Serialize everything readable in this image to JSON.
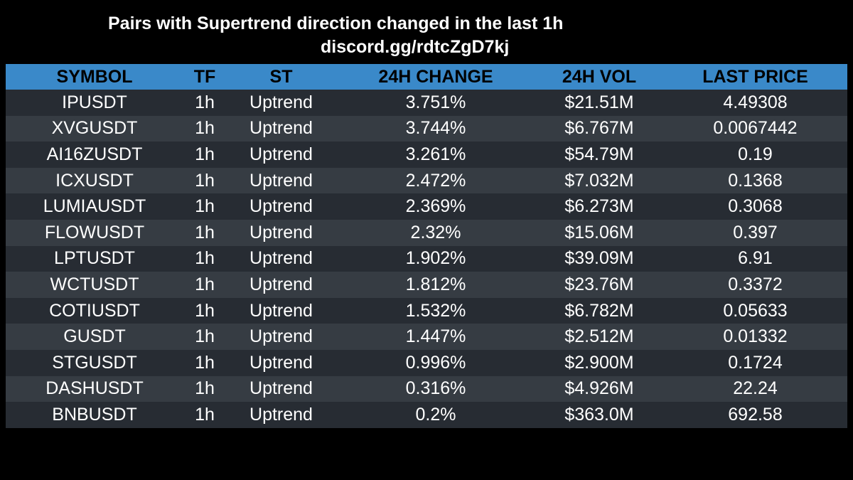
{
  "header": {
    "title": "Pairs with Supertrend direction changed in the last 1h",
    "subtitle": "discord.gg/rdtcZgD7kj"
  },
  "colors": {
    "background": "#000000",
    "header_row": "#3a89c9",
    "row_dark": "#272c33",
    "row_light": "#363c43",
    "text": "#ffffff"
  },
  "table": {
    "columns": [
      "SYMBOL",
      "TF",
      "ST",
      "24H CHANGE",
      "24H VOL",
      "LAST PRICE"
    ],
    "rows": [
      [
        "IPUSDT",
        "1h",
        "Uptrend",
        "3.751%",
        "$21.51M",
        "4.49308"
      ],
      [
        "XVGUSDT",
        "1h",
        "Uptrend",
        "3.744%",
        "$6.767M",
        "0.0067442"
      ],
      [
        "AI16ZUSDT",
        "1h",
        "Uptrend",
        "3.261%",
        "$54.79M",
        "0.19"
      ],
      [
        "ICXUSDT",
        "1h",
        "Uptrend",
        "2.472%",
        "$7.032M",
        "0.1368"
      ],
      [
        "LUMIAUSDT",
        "1h",
        "Uptrend",
        "2.369%",
        "$6.273M",
        "0.3068"
      ],
      [
        "FLOWUSDT",
        "1h",
        "Uptrend",
        "2.32%",
        "$15.06M",
        "0.397"
      ],
      [
        "LPTUSDT",
        "1h",
        "Uptrend",
        "1.902%",
        "$39.09M",
        "6.91"
      ],
      [
        "WCTUSDT",
        "1h",
        "Uptrend",
        "1.812%",
        "$23.76M",
        "0.3372"
      ],
      [
        "COTIUSDT",
        "1h",
        "Uptrend",
        "1.532%",
        "$6.782M",
        "0.05633"
      ],
      [
        "GUSDT",
        "1h",
        "Uptrend",
        "1.447%",
        "$2.512M",
        "0.01332"
      ],
      [
        "STGUSDT",
        "1h",
        "Uptrend",
        "0.996%",
        "$2.900M",
        "0.1724"
      ],
      [
        "DASHUSDT",
        "1h",
        "Uptrend",
        "0.316%",
        "$4.926M",
        "22.24"
      ],
      [
        "BNBUSDT",
        "1h",
        "Uptrend",
        "0.2%",
        "$363.0M",
        "692.58"
      ]
    ]
  }
}
